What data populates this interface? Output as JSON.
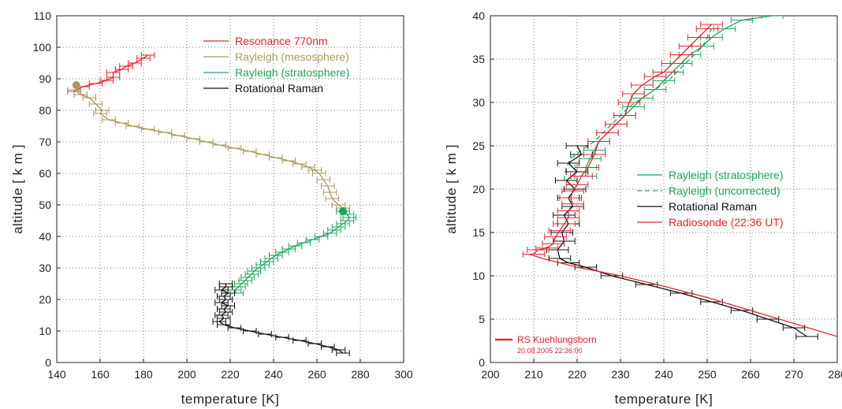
{
  "chart_data": [
    {
      "type": "line",
      "xlabel": "temperature [K]",
      "ylabel": "altitude [ k m ]",
      "xlim": [
        140,
        300
      ],
      "ylim": [
        0,
        110
      ],
      "xticks": [
        "140",
        "160",
        "180",
        "200",
        "220",
        "240",
        "260",
        "280",
        "300"
      ],
      "yticks": [
        "0",
        "10",
        "20",
        "30",
        "40",
        "50",
        "60",
        "70",
        "80",
        "90",
        "100",
        "110"
      ],
      "grid": true,
      "legend_position": "top-right",
      "series": [
        {
          "name": "Resonance 770nm",
          "color": "#e3262c",
          "points": [
            [
              148,
              86
            ],
            [
              152,
              87.5
            ],
            [
              158,
              88.5
            ],
            [
              163,
              89.5
            ],
            [
              166,
              90.5
            ],
            [
              166,
              92
            ],
            [
              170,
              93
            ],
            [
              172,
              94
            ],
            [
              176,
              95
            ],
            [
              180,
              96.5
            ],
            [
              182,
              97.5
            ]
          ]
        },
        {
          "name": "Rayleigh (mesosphere)",
          "color": "#a89a5e",
          "points": [
            [
              148,
              86.5
            ],
            [
              151,
              85
            ],
            [
              155,
              84
            ],
            [
              158,
              82
            ],
            [
              161,
              80
            ],
            [
              160,
              79
            ],
            [
              164,
              77
            ],
            [
              170,
              76
            ],
            [
              175,
              75
            ],
            [
              182,
              74
            ],
            [
              190,
              73
            ],
            [
              196,
              72
            ],
            [
              203,
              71
            ],
            [
              209,
              70
            ],
            [
              215,
              69
            ],
            [
              222,
              68
            ],
            [
              229,
              67
            ],
            [
              235,
              66
            ],
            [
              241,
              65
            ],
            [
              247,
              64
            ],
            [
              252,
              63
            ],
            [
              256,
              62
            ],
            [
              259,
              61
            ],
            [
              261,
              60
            ],
            [
              263,
              58
            ],
            [
              265,
              56
            ],
            [
              266,
              54
            ],
            [
              267,
              52
            ],
            [
              270,
              50
            ],
            [
              272,
              49
            ]
          ]
        },
        {
          "name": "Rayleigh (stratosphere)",
          "color": "#1aa65a",
          "points": [
            [
              272,
              48
            ],
            [
              274,
              47
            ],
            [
              275,
              46
            ],
            [
              274,
              45
            ],
            [
              272,
              44
            ],
            [
              270,
              43
            ],
            [
              268,
              42
            ],
            [
              266,
              41
            ],
            [
              262,
              40
            ],
            [
              258,
              39
            ],
            [
              254,
              38
            ],
            [
              250,
              37
            ],
            [
              247,
              36
            ],
            [
              244,
              35
            ],
            [
              241,
              34
            ],
            [
              239,
              33
            ],
            [
              237,
              32
            ],
            [
              235,
              31
            ],
            [
              233,
              30
            ],
            [
              231,
              29
            ],
            [
              230,
              28
            ],
            [
              228,
              27
            ],
            [
              227,
              26
            ],
            [
              225,
              25
            ],
            [
              224,
              24
            ],
            [
              222,
              23
            ],
            [
              223,
              22
            ]
          ]
        },
        {
          "name": "Rotational Raman",
          "color": "#111111",
          "points": [
            [
              218,
              25
            ],
            [
              218,
              24
            ],
            [
              216,
              23
            ],
            [
              219,
              22
            ],
            [
              217,
              21
            ],
            [
              218,
              20
            ],
            [
              216,
              19
            ],
            [
              219,
              18
            ],
            [
              217,
              17
            ],
            [
              218,
              16
            ],
            [
              216,
              15
            ],
            [
              217,
              14
            ],
            [
              215,
              13
            ],
            [
              217,
              12
            ],
            [
              222,
              11
            ],
            [
              229,
              10
            ],
            [
              236,
              9
            ],
            [
              244,
              8
            ],
            [
              252,
              7
            ],
            [
              259,
              6
            ],
            [
              265,
              5
            ],
            [
              270,
              4
            ],
            [
              272,
              3
            ]
          ]
        }
      ],
      "markers": [
        {
          "x": 149,
          "y": 88,
          "color": "#a89a5e"
        },
        {
          "x": 272,
          "y": 48,
          "color": "#1aa65a"
        }
      ]
    },
    {
      "type": "line",
      "xlabel": "temperature [K]",
      "ylabel": "altitude [ k m ]",
      "xlim": [
        200,
        280
      ],
      "ylim": [
        0,
        40
      ],
      "xticks": [
        "200",
        "210",
        "220",
        "230",
        "240",
        "250",
        "260",
        "270",
        "280"
      ],
      "yticks": [
        "0",
        "5",
        "10",
        "15",
        "20",
        "25",
        "30",
        "35",
        "40"
      ],
      "grid": true,
      "legend_position": "right",
      "series": [
        {
          "name": "Rayleigh (stratosphere)",
          "color": "#1aa65a",
          "points": [
            [
              222,
              21.5
            ],
            [
              222,
              22.5
            ],
            [
              223,
              23.5
            ],
            [
              224,
              24.5
            ],
            [
              225,
              25.5
            ],
            [
              227,
              26.5
            ],
            [
              229,
              27.5
            ],
            [
              231,
              28.5
            ],
            [
              233,
              29.5
            ],
            [
              235,
              30.5
            ],
            [
              238,
              31.5
            ],
            [
              240,
              32.5
            ],
            [
              242,
              33.5
            ],
            [
              244,
              34.5
            ],
            [
              246,
              35.5
            ],
            [
              249,
              36.5
            ],
            [
              251,
              37.5
            ],
            [
              254,
              38.5
            ],
            [
              258,
              39.5
            ],
            [
              265,
              40
            ]
          ]
        },
        {
          "name": "Rayleigh (uncorrected)",
          "color": "#1aa65a",
          "dashed": true,
          "points": [
            [
              217,
              21
            ],
            [
              217.5,
              22.5
            ],
            [
              218.5,
              23.5
            ],
            [
              221,
              24.5
            ],
            [
              224,
              25.5
            ],
            [
              226,
              26.5
            ],
            [
              228,
              27.5
            ],
            [
              230,
              28.5
            ],
            [
              232,
              29.5
            ],
            [
              235,
              30.5
            ],
            [
              238,
              31.5
            ],
            [
              241,
              32.5
            ],
            [
              243,
              33.5
            ],
            [
              245,
              34.5
            ],
            [
              247,
              35.5
            ],
            [
              249,
              36.5
            ],
            [
              250,
              37.5
            ],
            [
              251,
              38.5
            ]
          ]
        },
        {
          "name": "Rotational Raman",
          "color": "#111111",
          "points": [
            [
              220,
              25
            ],
            [
              221,
              24
            ],
            [
              218,
              23
            ],
            [
              220,
              22
            ],
            [
              217.5,
              21
            ],
            [
              219.5,
              20
            ],
            [
              218,
              19
            ],
            [
              219,
              18
            ],
            [
              217,
              17
            ],
            [
              218,
              16
            ],
            [
              216.5,
              15
            ],
            [
              217,
              14
            ],
            [
              215.5,
              13
            ],
            [
              216,
              12
            ],
            [
              218,
              11.5
            ],
            [
              222,
              11
            ],
            [
              228,
              10
            ],
            [
              236,
              9
            ],
            [
              244,
              8
            ],
            [
              251,
              7
            ],
            [
              258,
              6
            ],
            [
              264,
              5
            ],
            [
              270,
              4
            ],
            [
              273,
              3
            ]
          ]
        },
        {
          "name": "Radiosonde (22:36 UT)",
          "color": "#e3262c",
          "points": [
            [
              210,
              12.5
            ],
            [
              211,
              13
            ],
            [
              213,
              13.2
            ],
            [
              214.5,
              13.7
            ],
            [
              215,
              14.5
            ],
            [
              216,
              15.2
            ],
            [
              217,
              16
            ],
            [
              218,
              16.7
            ],
            [
              218,
              17.5
            ],
            [
              219,
              18.3
            ],
            [
              218.5,
              19
            ],
            [
              219,
              19.8
            ],
            [
              220,
              20.5
            ],
            [
              221,
              21.5
            ],
            [
              222.5,
              22.5
            ],
            [
              224,
              24
            ],
            [
              225,
              25.5
            ],
            [
              227,
              26.5
            ],
            [
              229,
              27.5
            ],
            [
              231,
              28.5
            ],
            [
              232,
              30
            ],
            [
              233,
              31
            ],
            [
              235,
              32
            ],
            [
              238,
              33
            ],
            [
              240,
              33.5
            ],
            [
              242,
              34.5
            ],
            [
              244,
              35.5
            ],
            [
              246,
              36.5
            ],
            [
              248,
              37.5
            ],
            [
              250,
              38.5
            ],
            [
              251,
              39
            ]
          ],
          "extra": [
            [
              209,
              12.5
            ],
            [
              212,
              12
            ],
            [
              216,
              11.5
            ],
            [
              220,
              11
            ],
            [
              230,
              10
            ],
            [
              240,
              8.8
            ],
            [
              250,
              7.5
            ],
            [
              260,
              6
            ],
            [
              270,
              4.5
            ],
            [
              280,
              3
            ]
          ]
        }
      ],
      "note_title": "RS Kuehlungsborn",
      "note_date": "20.08.2005 22:36:00"
    }
  ]
}
